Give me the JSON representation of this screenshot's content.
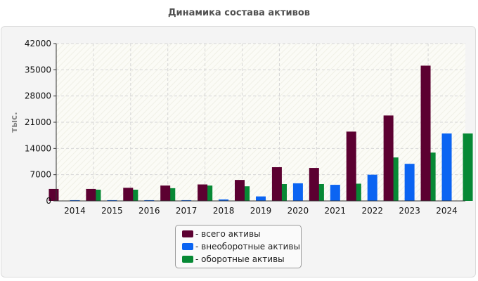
{
  "chart_data": {
    "type": "bar",
    "title": "Динамика состава активов",
    "xlabel": "",
    "ylabel": "тыс.",
    "ylim": [
      0,
      42000
    ],
    "yticks": [
      "0",
      "7000",
      "14000",
      "21000",
      "28000",
      "35000",
      "42000"
    ],
    "ytick_values": [
      0,
      7000,
      14000,
      21000,
      28000,
      35000,
      42000
    ],
    "categories": [
      "2014",
      "2015",
      "2016",
      "2017",
      "2018",
      "2019",
      "2020",
      "2021",
      "2022",
      "2023",
      "2024"
    ],
    "grid": true,
    "legend_position": "bottom-center",
    "series": [
      {
        "name": "- всего активы",
        "color": "#5c0031",
        "values": [
          3200,
          3200,
          3500,
          4100,
          4400,
          5600,
          9000,
          8800,
          18500,
          22800,
          36100
        ]
      },
      {
        "name": "- внеоборотные активы",
        "color": "#0b64f2",
        "values": [
          200,
          200,
          200,
          200,
          400,
          1200,
          4700,
          4300,
          7000,
          9900,
          18000
        ]
      },
      {
        "name": "- оборотные активы",
        "color": "#078935",
        "values": [
          3000,
          3000,
          3400,
          4100,
          3900,
          4500,
          4500,
          4600,
          11600,
          12900,
          18000
        ]
      }
    ]
  }
}
